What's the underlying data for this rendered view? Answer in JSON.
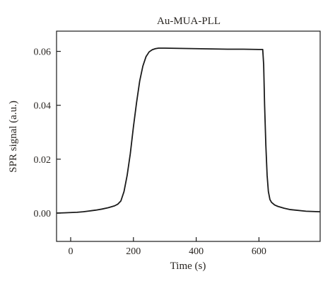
{
  "chart_data": {
    "type": "line",
    "title": "Au-MUA-PLL",
    "xlabel": "Time (s)",
    "ylabel": "SPR signal (a.u.)",
    "xlim": [
      -45,
      795
    ],
    "ylim": [
      -0.0105,
      0.0675
    ],
    "xticks": [
      0,
      200,
      400,
      600
    ],
    "xtick_labels": [
      "0",
      "200",
      "400",
      "600"
    ],
    "yticks": [
      0.0,
      0.02,
      0.04,
      0.06
    ],
    "ytick_labels": [
      "0.00",
      "0.02",
      "0.04",
      "0.06"
    ],
    "grid": false,
    "legend": "none",
    "line_color": "#1a1a1a",
    "series": [
      {
        "x": [
          -45,
          -20,
          0,
          20,
          40,
          60,
          80,
          100,
          120,
          140,
          150,
          160,
          170,
          180,
          190,
          200,
          210,
          220,
          230,
          240,
          250,
          260,
          270,
          280,
          300,
          350,
          400,
          450,
          500,
          550,
          600,
          612,
          615,
          618,
          622,
          626,
          630,
          635,
          640,
          650,
          660,
          680,
          700,
          750,
          795
        ],
        "y": [
          0.0,
          0.0001,
          0.0002,
          0.0003,
          0.0005,
          0.0008,
          0.0011,
          0.0015,
          0.002,
          0.0027,
          0.0033,
          0.0045,
          0.008,
          0.014,
          0.022,
          0.032,
          0.041,
          0.049,
          0.0545,
          0.058,
          0.0598,
          0.0606,
          0.061,
          0.0612,
          0.0612,
          0.0611,
          0.061,
          0.0609,
          0.0608,
          0.0608,
          0.0607,
          0.0607,
          0.055,
          0.04,
          0.025,
          0.014,
          0.008,
          0.005,
          0.004,
          0.003,
          0.0025,
          0.0018,
          0.0013,
          0.0007,
          0.0005
        ]
      }
    ]
  }
}
